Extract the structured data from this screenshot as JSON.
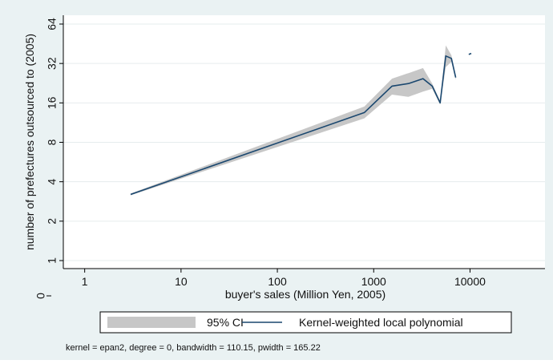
{
  "chart_data": {
    "type": "line",
    "xlabel": "buyer's sales (Million Yen, 2005)",
    "ylabel": "number of prefectures outsourced to (2005)",
    "x_scale": "log",
    "y_scale": "log",
    "xlim": [
      0.6,
      60000
    ],
    "ylim": [
      1,
      64
    ],
    "x_ticks": [
      {
        "value": 1,
        "label": "1"
      },
      {
        "value": 10,
        "label": "10"
      },
      {
        "value": 100,
        "label": "100"
      },
      {
        "value": 1000,
        "label": "1000"
      },
      {
        "value": 10000,
        "label": "10000"
      }
    ],
    "y_ticks": [
      {
        "value": 1,
        "label": "1"
      },
      {
        "value": 2,
        "label": "2"
      },
      {
        "value": 4,
        "label": "4"
      },
      {
        "value": 8,
        "label": "8"
      },
      {
        "value": 16,
        "label": "16"
      },
      {
        "value": 32,
        "label": "32"
      },
      {
        "value": 64,
        "label": "64"
      }
    ],
    "y_zero_label": "0",
    "grid": true,
    "legend_position": "bottom",
    "series": [
      {
        "name": "Kernel-weighted local polynomial",
        "color": "#1a476f",
        "segments": [
          [
            {
              "x": 3,
              "y": 3.2
            },
            {
              "x": 800,
              "y": 13.5
            },
            {
              "x": 1550,
              "y": 21.5
            },
            {
              "x": 2300,
              "y": 22.5
            },
            {
              "x": 3250,
              "y": 24.5
            },
            {
              "x": 4050,
              "y": 21.5
            },
            {
              "x": 4900,
              "y": 16.0
            },
            {
              "x": 5600,
              "y": 36.5
            },
            {
              "x": 6400,
              "y": 35.0
            },
            {
              "x": 7100,
              "y": 25.0
            }
          ],
          [
            {
              "x": 9700,
              "y": 37.5
            },
            {
              "x": 10300,
              "y": 38.2
            }
          ]
        ]
      },
      {
        "name": "95% CI",
        "color": "#c7c7c7",
        "upper": [
          {
            "x": 3,
            "y": 3.25
          },
          {
            "x": 800,
            "y": 15.0
          },
          {
            "x": 1550,
            "y": 24.5
          },
          {
            "x": 2300,
            "y": 27.0
          },
          {
            "x": 3250,
            "y": 29.5
          },
          {
            "x": 4050,
            "y": 22.5
          },
          {
            "x": 4900,
            "y": 16.5
          },
          {
            "x": 5600,
            "y": 44.0
          },
          {
            "x": 6400,
            "y": 37.0
          },
          {
            "x": 7100,
            "y": 26.0
          }
        ],
        "lower": [
          {
            "x": 3,
            "y": 3.15
          },
          {
            "x": 800,
            "y": 12.2
          },
          {
            "x": 1550,
            "y": 18.5
          },
          {
            "x": 2300,
            "y": 17.8
          },
          {
            "x": 3250,
            "y": 19.5
          },
          {
            "x": 4050,
            "y": 20.5
          },
          {
            "x": 4900,
            "y": 15.5
          },
          {
            "x": 5600,
            "y": 30.0
          },
          {
            "x": 6400,
            "y": 33.0
          },
          {
            "x": 7100,
            "y": 24.0
          }
        ]
      }
    ],
    "legend": {
      "ci_label": "95% CI",
      "line_label": "Kernel-weighted local polynomial"
    },
    "note": "kernel = epan2, degree = 0, bandwidth = 110.15, pwidth = 165.22"
  }
}
